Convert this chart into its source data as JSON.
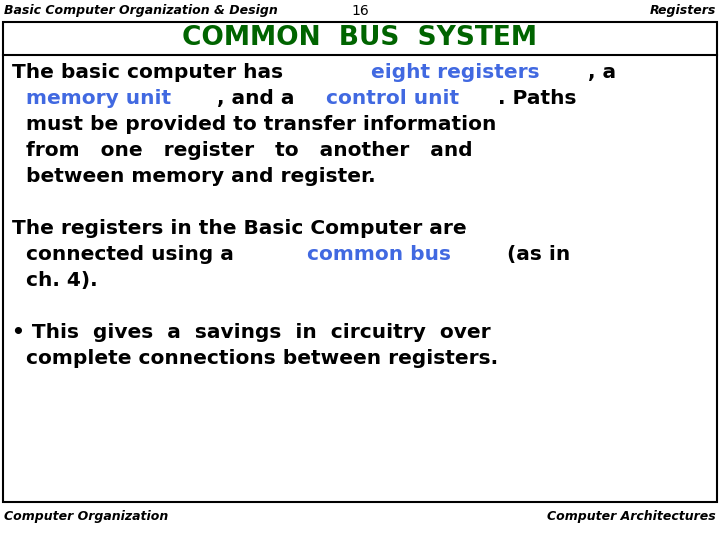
{
  "header_left": "Basic Computer Organization & Design",
  "header_center": "16",
  "header_right": "Registers",
  "title": "COMMON  BUS  SYSTEM",
  "footer_left": "Computer Organization",
  "footer_right": "Computer Architectures",
  "bg_color": "#ffffff",
  "header_font_size": 9,
  "title_font_size": 19,
  "body_font_size": 14.5,
  "footer_font_size": 9,
  "title_color": "#006400",
  "black": "#000000",
  "blue": "#4169E1",
  "body_lines": [
    {
      "segments": [
        {
          "text": "The basic computer has ",
          "color": "#000000",
          "bold": true
        },
        {
          "text": "eight registers",
          "color": "#4169E1",
          "bold": true
        },
        {
          "text": ", a",
          "color": "#000000",
          "bold": true
        }
      ]
    },
    {
      "segments": [
        {
          "text": "  memory unit",
          "color": "#4169E1",
          "bold": true
        },
        {
          "text": ", and a ",
          "color": "#000000",
          "bold": true
        },
        {
          "text": "control unit",
          "color": "#4169E1",
          "bold": true
        },
        {
          "text": ". Paths",
          "color": "#000000",
          "bold": true
        }
      ]
    },
    {
      "segments": [
        {
          "text": "  must be provided to transfer information",
          "color": "#000000",
          "bold": true
        }
      ]
    },
    {
      "segments": [
        {
          "text": "  from   one   register   to   another   and",
          "color": "#000000",
          "bold": true
        }
      ]
    },
    {
      "segments": [
        {
          "text": "  between memory and register.",
          "color": "#000000",
          "bold": true
        }
      ]
    },
    {
      "segments": []
    },
    {
      "segments": [
        {
          "text": "The registers in the Basic Computer are",
          "color": "#000000",
          "bold": true
        }
      ]
    },
    {
      "segments": [
        {
          "text": "  connected using a ",
          "color": "#000000",
          "bold": true
        },
        {
          "text": "common bus",
          "color": "#4169E1",
          "bold": true
        },
        {
          "text": "  (as in",
          "color": "#000000",
          "bold": true
        }
      ]
    },
    {
      "segments": [
        {
          "text": "  ch. 4).",
          "color": "#000000",
          "bold": true
        }
      ]
    },
    {
      "segments": []
    },
    {
      "segments": [
        {
          "text": "• This  gives  a  savings  in  circuitry  over",
          "color": "#000000",
          "bold": true
        }
      ]
    },
    {
      "segments": [
        {
          "text": "  complete connections between registers.",
          "color": "#000000",
          "bold": true
        }
      ]
    }
  ]
}
